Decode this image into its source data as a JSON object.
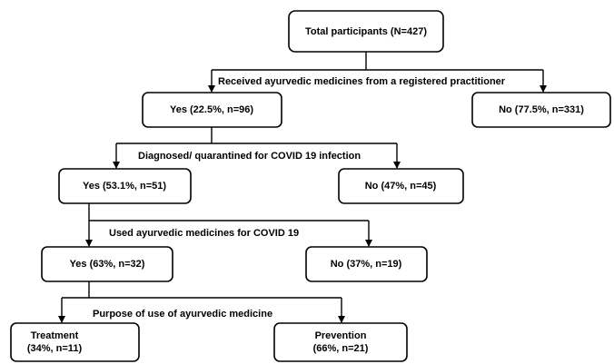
{
  "nodes": [
    {
      "lines": [
        "Total participants (N=427)"
      ]
    },
    {
      "lines": [
        "Yes (22.5%, n=96)"
      ]
    },
    {
      "lines": [
        "No (77.5%, n=331)"
      ]
    },
    {
      "lines": [
        "Yes (53.1%, n=51)"
      ]
    },
    {
      "lines": [
        "No (47%, n=45)"
      ]
    },
    {
      "lines": [
        "Yes (63%, n=32)"
      ]
    },
    {
      "lines": [
        "No (37%, n=19)"
      ]
    },
    {
      "lines": [
        "Treatment",
        "(34%, n=11)"
      ]
    },
    {
      "lines": [
        "Prevention",
        "(66%, n=21)"
      ]
    }
  ],
  "edge_labels": [
    "Received ayurvedic medicines from a registered practitioner",
    "Diagnosed/ quarantined for COVID 19 infection",
    "Used ayurvedic medicines for COVID 19",
    "Purpose of use of ayurvedic medicine"
  ]
}
